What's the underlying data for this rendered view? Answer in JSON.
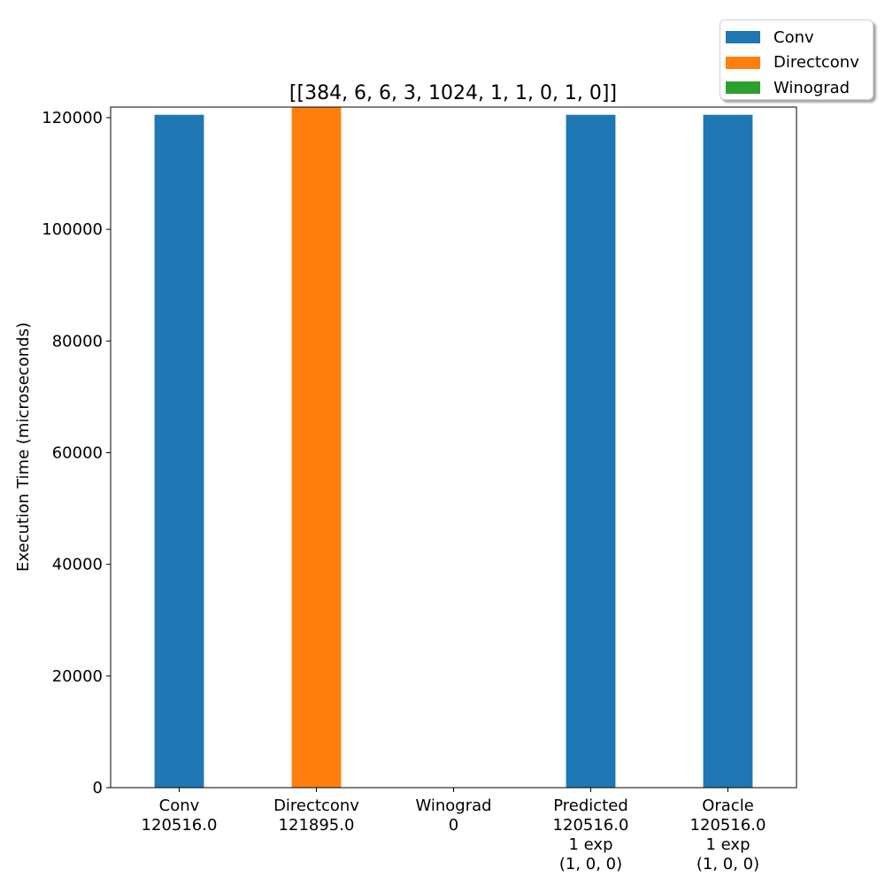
{
  "chart_data": {
    "type": "bar",
    "title": "[[384, 6, 6, 3, 1024, 1, 1, 0, 1, 0]]",
    "xlabel": "",
    "ylabel": "Execution Time (microseconds)",
    "ylim": [
      0,
      121895
    ],
    "yticks": [
      0,
      20000,
      40000,
      60000,
      80000,
      100000,
      120000
    ],
    "categories": [
      [
        "Conv",
        "120516.0"
      ],
      [
        "Directconv",
        "121895.0"
      ],
      [
        "Winograd",
        "0"
      ],
      [
        "Predicted",
        "120516.0",
        "1 exp",
        "(1, 0, 0)"
      ],
      [
        "Oracle",
        "120516.0",
        "1 exp",
        "(1, 0, 0)"
      ]
    ],
    "values": [
      120516.0,
      121895.0,
      0,
      120516.0,
      120516.0
    ],
    "bar_series": [
      "Conv",
      "Directconv",
      "Winograd",
      "Conv",
      "Conv"
    ],
    "legend": {
      "placement": "top-right, outside plot",
      "entries": [
        {
          "name": "Conv",
          "color": "#1f77b4"
        },
        {
          "name": "Directconv",
          "color": "#ff7f0e"
        },
        {
          "name": "Winograd",
          "color": "#2ca02c"
        }
      ]
    },
    "grid": false
  }
}
